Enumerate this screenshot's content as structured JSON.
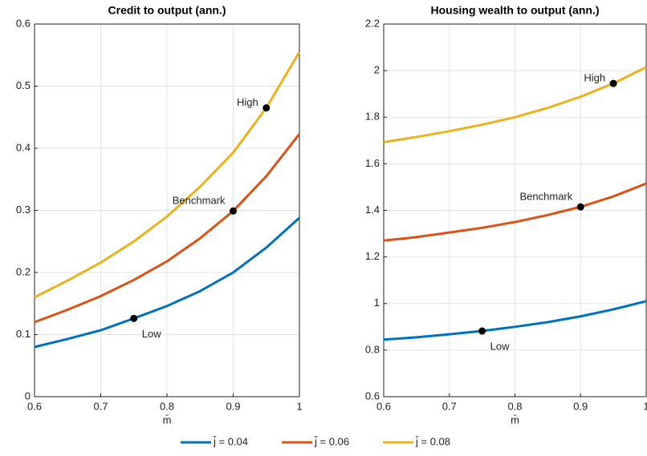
{
  "chart_data": [
    {
      "type": "line",
      "title": "Credit to output (ann.)",
      "xlabel": "m̄",
      "x": [
        0.6,
        0.65,
        0.7,
        0.75,
        0.8,
        0.85,
        0.9,
        0.95,
        1.0
      ],
      "xlim": [
        0.6,
        1
      ],
      "xticks": [
        0.6,
        0.7,
        0.8,
        0.9,
        1
      ],
      "ylim": [
        0,
        0.6
      ],
      "yticks": [
        0,
        0.1,
        0.2,
        0.3,
        0.4,
        0.5,
        0.6
      ],
      "grid": true,
      "series": [
        {
          "name": "j̄ = 0.04",
          "color": "#0072bd",
          "values": [
            0.08,
            0.093,
            0.107,
            0.126,
            0.146,
            0.17,
            0.2,
            0.24,
            0.288
          ]
        },
        {
          "name": "j̄ = 0.06",
          "color": "#d95319",
          "values": [
            0.12,
            0.14,
            0.162,
            0.188,
            0.218,
            0.255,
            0.299,
            0.355,
            0.423
          ]
        },
        {
          "name": "j̄ = 0.08",
          "color": "#edb120",
          "values": [
            0.16,
            0.187,
            0.216,
            0.25,
            0.29,
            0.338,
            0.393,
            0.465,
            0.555
          ]
        }
      ],
      "annotations": [
        {
          "label": "Low",
          "x": 0.75,
          "y": 0.126
        },
        {
          "label": "Benchmark",
          "x": 0.9,
          "y": 0.299
        },
        {
          "label": "High",
          "x": 0.95,
          "y": 0.465
        }
      ]
    },
    {
      "type": "line",
      "title": "Housing wealth to output (ann.)",
      "xlabel": "m̄",
      "x": [
        0.6,
        0.65,
        0.7,
        0.75,
        0.8,
        0.85,
        0.9,
        0.95,
        1.0
      ],
      "xlim": [
        0.6,
        1
      ],
      "xticks": [
        0.6,
        0.7,
        0.8,
        0.9,
        1
      ],
      "ylim": [
        0.6,
        2.2
      ],
      "yticks": [
        0.6,
        0.8,
        1,
        1.2,
        1.4,
        1.6,
        1.8,
        2,
        2.2
      ],
      "grid": true,
      "series": [
        {
          "color": "#0072bd",
          "values": [
            0.845,
            0.855,
            0.868,
            0.882,
            0.9,
            0.92,
            0.945,
            0.975,
            1.01
          ]
        },
        {
          "color": "#d95319",
          "values": [
            1.27,
            1.285,
            1.305,
            1.325,
            1.35,
            1.38,
            1.415,
            1.46,
            1.515
          ]
        },
        {
          "color": "#edb120",
          "values": [
            1.693,
            1.715,
            1.74,
            1.768,
            1.8,
            1.84,
            1.888,
            1.945,
            2.015
          ]
        }
      ],
      "annotations": [
        {
          "label": "Low",
          "x": 0.75,
          "y": 0.882
        },
        {
          "label": "Benchmark",
          "x": 0.9,
          "y": 1.415
        },
        {
          "label": "High",
          "x": 0.95,
          "y": 1.945
        }
      ]
    }
  ]
}
